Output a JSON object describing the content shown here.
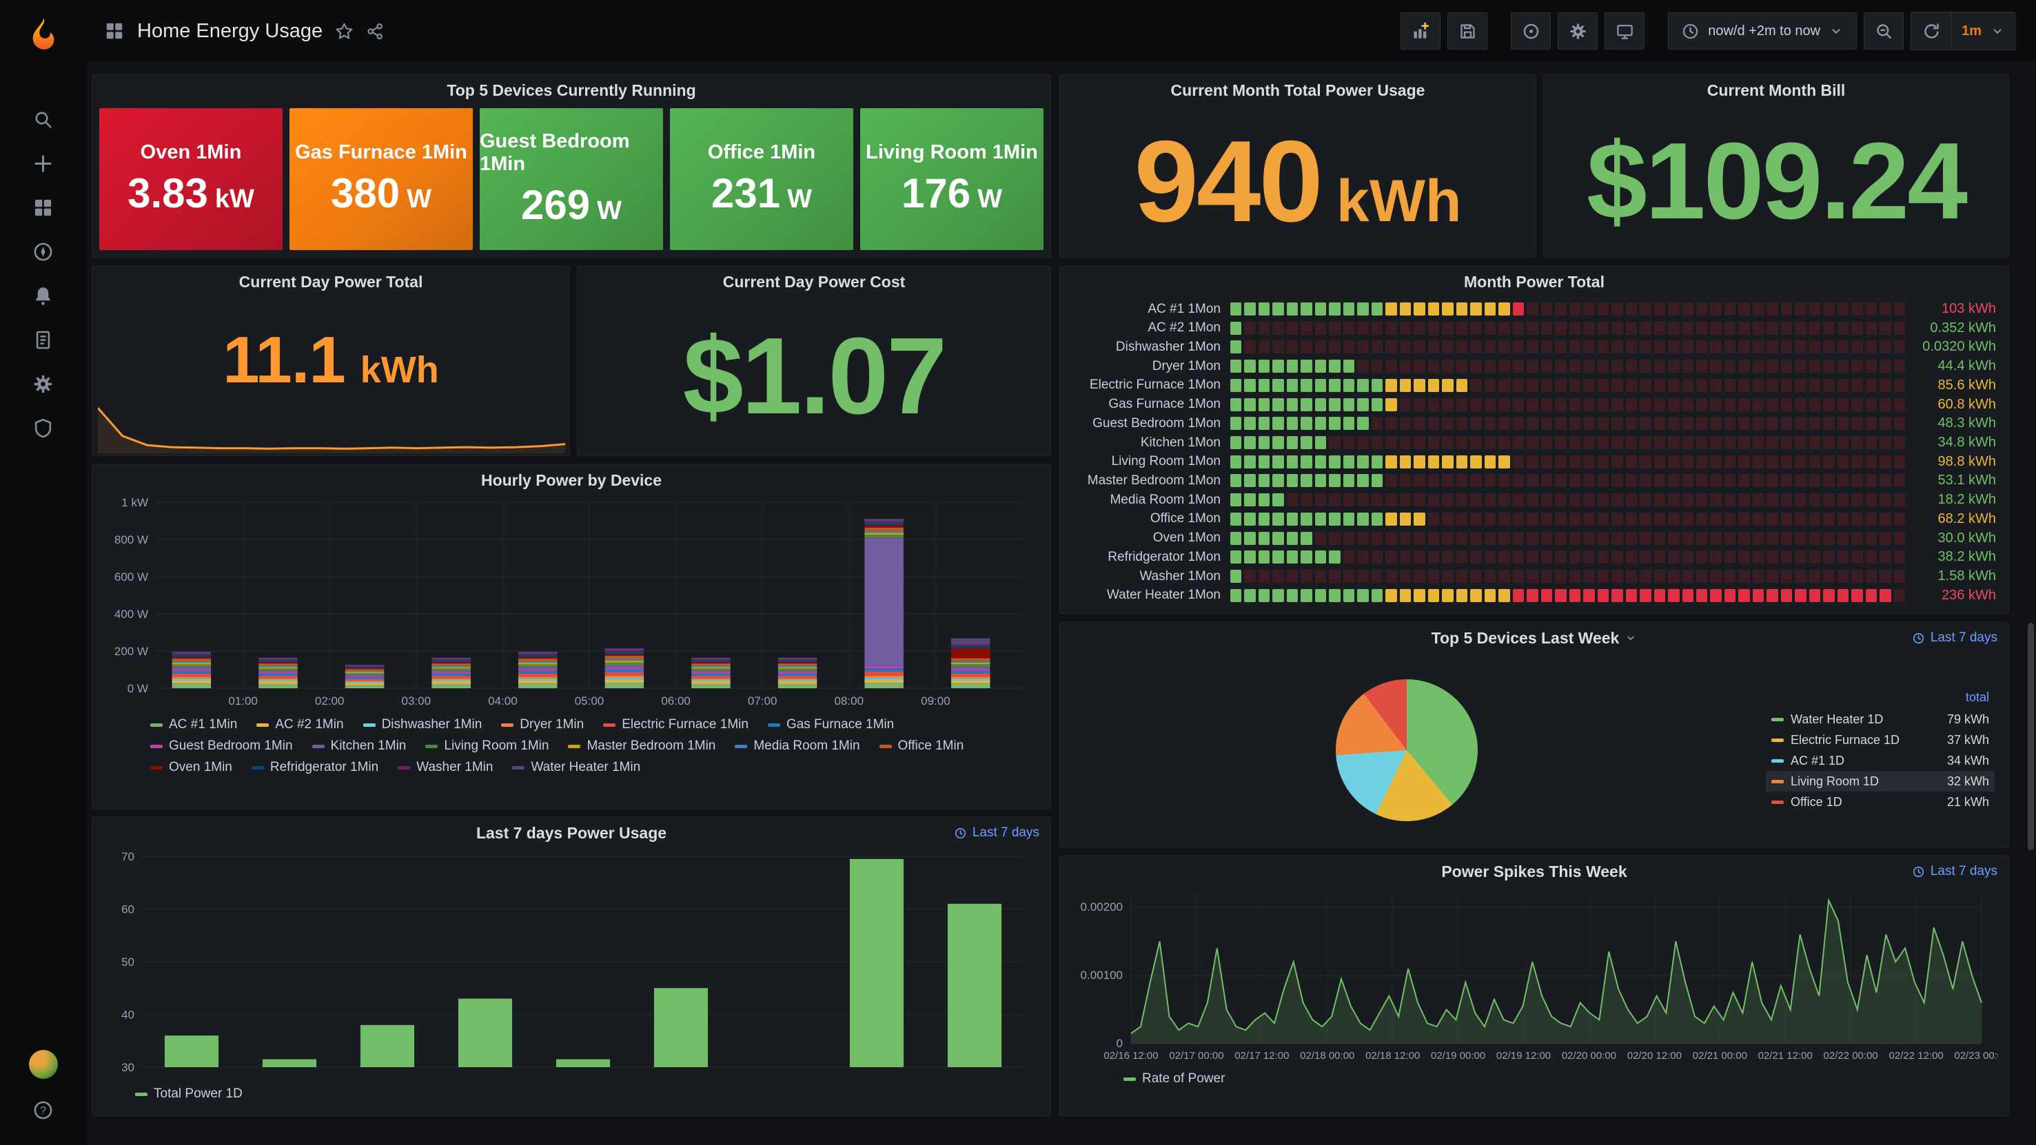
{
  "colors": {
    "green": "#73bf69",
    "yellow": "#eab839",
    "red": "#f2495c",
    "orange": "#ff9830",
    "stat_orange": "#f2a33c",
    "link_blue": "#6e9fff",
    "lcd_unlit": "#3a1d22",
    "interval_orange": "#eb7b18"
  },
  "header": {
    "title": "Home Energy Usage",
    "time_range": "now/d +2m to now",
    "refresh_interval": "1m"
  },
  "labels": {
    "time_link": "Last 7 days"
  },
  "panels": {
    "top5_running": {
      "title": "Top 5 Devices Currently Running",
      "tiles": [
        {
          "label": "Oven 1Min",
          "value": "3.83",
          "unit": "kW",
          "color": "#c4162a"
        },
        {
          "label": "Gas Furnace 1Min",
          "value": "380",
          "unit": "W",
          "color": "#ef7b10"
        },
        {
          "label": "Guest Bedroom 1Min",
          "value": "269",
          "unit": "W",
          "color": "#4aa24a"
        },
        {
          "label": "Office 1Min",
          "value": "231",
          "unit": "W",
          "color": "#4aa24a"
        },
        {
          "label": "Living Room 1Min",
          "value": "176",
          "unit": "W",
          "color": "#4aa24a"
        }
      ]
    },
    "month_usage": {
      "title": "Current Month Total Power Usage",
      "value": "940",
      "unit": "kWh"
    },
    "month_bill": {
      "title": "Current Month Bill",
      "value": "$109.24"
    },
    "day_total": {
      "title": "Current Day Power Total",
      "value": "11.1",
      "unit": "kWh"
    },
    "day_cost": {
      "title": "Current Day Power Cost",
      "value": "$1.07"
    },
    "month_total": {
      "title": "Month Power Total"
    },
    "hourly": {
      "title": "Hourly Power by Device"
    },
    "top5_week": {
      "title": "Top 5 Devices Last Week",
      "value_header": "total"
    },
    "last7": {
      "title": "Last 7 days Power Usage",
      "legend": "Total Power 1D"
    },
    "spikes": {
      "title": "Power Spikes This Week",
      "legend": "Rate of Power"
    }
  },
  "chart_data": [
    {
      "id": "month_power_total",
      "type": "bar",
      "title": "Month Power Total",
      "style": "retro-lcd-gauge-rows",
      "max": 240,
      "cells_per_row": 48,
      "thresholds": {
        "yellow": 55,
        "red": 100
      },
      "rows": [
        {
          "label": "AC #1 1Mon",
          "value": 103,
          "display": "103 kWh",
          "level": "red"
        },
        {
          "label": "AC #2 1Mon",
          "value": 0.352,
          "display": "0.352 kWh",
          "level": "green"
        },
        {
          "label": "Dishwasher 1Mon",
          "value": 0.032,
          "display": "0.0320 kWh",
          "level": "green"
        },
        {
          "label": "Dryer 1Mon",
          "value": 44.4,
          "display": "44.4 kWh",
          "level": "green"
        },
        {
          "label": "Electric Furnace 1Mon",
          "value": 85.6,
          "display": "85.6 kWh",
          "level": "yellow"
        },
        {
          "label": "Gas Furnace 1Mon",
          "value": 60.8,
          "display": "60.8 kWh",
          "level": "yellow"
        },
        {
          "label": "Guest Bedroom 1Mon",
          "value": 48.3,
          "display": "48.3 kWh",
          "level": "green"
        },
        {
          "label": "Kitchen 1Mon",
          "value": 34.8,
          "display": "34.8 kWh",
          "level": "green"
        },
        {
          "label": "Living Room 1Mon",
          "value": 98.8,
          "display": "98.8 kWh",
          "level": "yellow"
        },
        {
          "label": "Master Bedroom 1Mon",
          "value": 53.1,
          "display": "53.1 kWh",
          "level": "green"
        },
        {
          "label": "Media Room 1Mon",
          "value": 18.2,
          "display": "18.2 kWh",
          "level": "green"
        },
        {
          "label": "Office 1Mon",
          "value": 68.2,
          "display": "68.2 kWh",
          "level": "yellow"
        },
        {
          "label": "Oven 1Mon",
          "value": 30.0,
          "display": "30.0 kWh",
          "level": "green"
        },
        {
          "label": "Refridgerator 1Mon",
          "value": 38.2,
          "display": "38.2 kWh",
          "level": "green"
        },
        {
          "label": "Washer 1Mon",
          "value": 1.58,
          "display": "1.58 kWh",
          "level": "green"
        },
        {
          "label": "Water Heater 1Mon",
          "value": 236,
          "display": "236 kWh",
          "level": "red"
        }
      ]
    },
    {
      "id": "hourly_power_by_device",
      "type": "bar",
      "stacked": true,
      "title": "Hourly Power by Device",
      "slots": 10,
      "xlabels": [
        "01:00",
        "02:00",
        "03:00",
        "04:00",
        "05:00",
        "06:00",
        "07:00",
        "08:00",
        "09:00"
      ],
      "ylim": [
        0,
        1000
      ],
      "yticks": [
        {
          "v": 0,
          "label": "0 W"
        },
        {
          "v": 200,
          "label": "200 W"
        },
        {
          "v": 400,
          "label": "400 W"
        },
        {
          "v": 600,
          "label": "600 W"
        },
        {
          "v": 800,
          "label": "800 W"
        },
        {
          "v": 1000,
          "label": "1 kW"
        }
      ],
      "series": [
        {
          "name": "AC #1 1Min",
          "color": "#7eb26d",
          "values": [
            28,
            24,
            18,
            24,
            28,
            30,
            24,
            24,
            30,
            28
          ]
        },
        {
          "name": "AC #2 1Min",
          "color": "#eab839",
          "values": [
            14,
            12,
            9,
            12,
            14,
            15,
            12,
            12,
            15,
            14
          ]
        },
        {
          "name": "Dishwasher 1Min",
          "color": "#6ed0e0",
          "values": [
            9,
            8,
            6,
            8,
            9,
            10,
            8,
            8,
            10,
            9
          ]
        },
        {
          "name": "Dryer 1Min",
          "color": "#ef843c",
          "values": [
            11,
            9,
            7,
            9,
            11,
            12,
            9,
            9,
            12,
            11
          ]
        },
        {
          "name": "Electric Furnace 1Min",
          "color": "#e24d42",
          "values": [
            18,
            14,
            10,
            14,
            18,
            20,
            14,
            14,
            24,
            18
          ]
        },
        {
          "name": "Gas Furnace 1Min",
          "color": "#1f78c1",
          "values": [
            14,
            11,
            9,
            11,
            14,
            15,
            11,
            11,
            15,
            14
          ]
        },
        {
          "name": "Guest Bedroom 1Min",
          "color": "#ba43a9",
          "values": [
            11,
            9,
            7,
            9,
            11,
            12,
            9,
            9,
            14,
            11
          ]
        },
        {
          "name": "Kitchen 1Min",
          "color": "#705da0",
          "values": [
            9,
            8,
            6,
            8,
            9,
            10,
            8,
            8,
            690,
            10
          ]
        },
        {
          "name": "Living Room 1Min",
          "color": "#508642",
          "values": [
            14,
            11,
            9,
            11,
            14,
            15,
            11,
            11,
            15,
            14
          ]
        },
        {
          "name": "Master Bedroom 1Min",
          "color": "#cca300",
          "values": [
            9,
            8,
            6,
            8,
            9,
            10,
            8,
            8,
            10,
            9
          ]
        },
        {
          "name": "Media Room 1Min",
          "color": "#447ebc",
          "values": [
            9,
            8,
            6,
            8,
            9,
            10,
            8,
            8,
            10,
            9
          ]
        },
        {
          "name": "Office 1Min",
          "color": "#c15c17",
          "values": [
            14,
            11,
            9,
            11,
            14,
            15,
            11,
            11,
            18,
            14
          ]
        },
        {
          "name": "Oven 1Min",
          "color": "#890f02",
          "values": [
            9,
            8,
            6,
            8,
            9,
            10,
            8,
            8,
            14,
            55
          ]
        },
        {
          "name": "Refridgerator 1Min",
          "color": "#0a437c",
          "values": [
            11,
            9,
            7,
            9,
            11,
            12,
            9,
            9,
            12,
            11
          ]
        },
        {
          "name": "Washer 1Min",
          "color": "#6d1f62",
          "values": [
            7,
            6,
            5,
            6,
            7,
            8,
            6,
            6,
            9,
            7
          ]
        },
        {
          "name": "Water Heater 1Min",
          "color": "#584477",
          "values": [
            9,
            8,
            6,
            8,
            9,
            10,
            8,
            8,
            12,
            35
          ]
        }
      ]
    },
    {
      "id": "top5_last_week",
      "type": "pie",
      "title": "Top 5 Devices Last Week",
      "value_header": "total",
      "slices": [
        {
          "name": "Water Heater 1D",
          "value": 79,
          "display": "79 kWh",
          "color": "#73bf69",
          "highlighted": false
        },
        {
          "name": "Electric Furnace 1D",
          "value": 37,
          "display": "37 kWh",
          "color": "#eab839",
          "highlighted": false
        },
        {
          "name": "AC #1 1D",
          "value": 34,
          "display": "34 kWh",
          "color": "#6ed0e0",
          "highlighted": false
        },
        {
          "name": "Living Room 1D",
          "value": 32,
          "display": "32 kWh",
          "color": "#ef843c",
          "highlighted": true
        },
        {
          "name": "Office 1D",
          "value": 21,
          "display": "21 kWh",
          "color": "#e24d42",
          "highlighted": false
        }
      ]
    },
    {
      "id": "last7_power_usage",
      "type": "bar",
      "title": "Last 7 days Power Usage",
      "legend": "Total Power 1D",
      "color": "#73bf69",
      "ylim": [
        30,
        70
      ],
      "yticks": [
        30,
        40,
        50,
        60,
        70
      ],
      "values": [
        36,
        31.5,
        38,
        43,
        31.5,
        45,
        null,
        69.5,
        61
      ]
    },
    {
      "id": "power_spikes",
      "type": "area",
      "title": "Power Spikes This Week",
      "legend": "Rate of Power",
      "color": "#73bf69",
      "ylim": [
        0,
        0.0022
      ],
      "yticks": [
        {
          "v": 0,
          "label": "0"
        },
        {
          "v": 0.001,
          "label": "0.00100"
        },
        {
          "v": 0.002,
          "label": "0.00200"
        }
      ],
      "xlabels": [
        "02/16 12:00",
        "02/17 00:00",
        "02/17 12:00",
        "02/18 00:00",
        "02/18 12:00",
        "02/19 00:00",
        "02/19 12:00",
        "02/20 00:00",
        "02/20 12:00",
        "02/21 00:00",
        "02/21 12:00",
        "02/22 00:00",
        "02/22 12:00",
        "02/23 00:00"
      ],
      "values": [
        0.00015,
        0.00025,
        0.0009,
        0.0015,
        0.0004,
        0.0002,
        0.0003,
        0.00025,
        0.0006,
        0.0014,
        0.0005,
        0.00025,
        0.0002,
        0.00035,
        0.00045,
        0.0003,
        0.0008,
        0.0012,
        0.0006,
        0.00035,
        0.00025,
        0.0004,
        0.00095,
        0.00055,
        0.0003,
        0.0002,
        0.00045,
        0.0007,
        0.0004,
        0.0011,
        0.0006,
        0.0003,
        0.00025,
        0.0005,
        0.00035,
        0.0009,
        0.00045,
        0.00025,
        0.00065,
        0.00035,
        0.0003,
        0.00055,
        0.0012,
        0.0007,
        0.0004,
        0.0003,
        0.00025,
        0.0006,
        0.00045,
        0.00035,
        0.00135,
        0.0008,
        0.0005,
        0.0003,
        0.0004,
        0.0007,
        0.00045,
        0.0015,
        0.0009,
        0.0004,
        0.0003,
        0.00055,
        0.00035,
        0.00075,
        0.00045,
        0.0012,
        0.0006,
        0.00035,
        0.00085,
        0.0005,
        0.0016,
        0.0011,
        0.0007,
        0.0021,
        0.0018,
        0.0009,
        0.0005,
        0.0013,
        0.00075,
        0.0016,
        0.0012,
        0.0014,
        0.0009,
        0.0006,
        0.0017,
        0.0013,
        0.0008,
        0.0015,
        0.001,
        0.0006
      ]
    },
    {
      "id": "day_total_sparkline",
      "type": "line",
      "color": "#ff9830",
      "values": [
        0.85,
        0.3,
        0.12,
        0.08,
        0.07,
        0.06,
        0.06,
        0.05,
        0.06,
        0.06,
        0.05,
        0.06,
        0.07,
        0.06,
        0.07,
        0.08,
        0.07,
        0.08,
        0.1,
        0.14
      ]
    }
  ]
}
